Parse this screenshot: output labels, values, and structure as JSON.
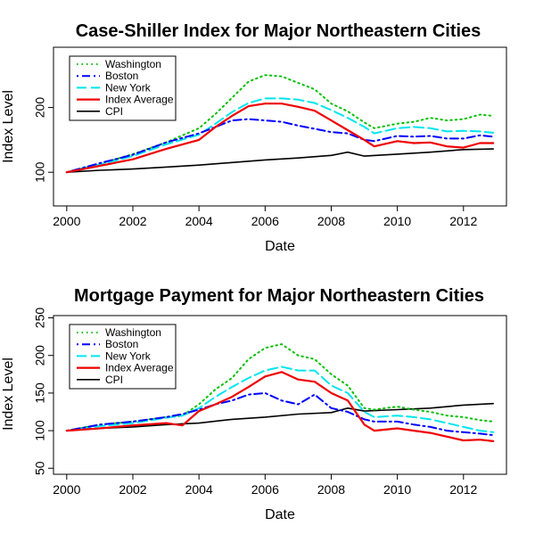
{
  "chart_data": [
    {
      "type": "line",
      "title": "Case-Shiller Index for Major Northeastern Cities",
      "xlabel": "Date",
      "ylabel": "Index Level",
      "xlim": [
        1999.6,
        2013.3
      ],
      "ylim": [
        48,
        293
      ],
      "x_ticks": [
        2000,
        2002,
        2004,
        2006,
        2008,
        2010,
        2012
      ],
      "y_ticks": [
        100,
        200
      ],
      "legend_position": "top-left",
      "series": [
        {
          "name": "Washington",
          "color": "#00c000",
          "style": "dotted",
          "x": [
            2000,
            2001,
            2002,
            2003,
            2004,
            2004.5,
            2005,
            2005.5,
            2006,
            2006.5,
            2007,
            2007.5,
            2008,
            2008.5,
            2009,
            2009.3,
            2010,
            2010.5,
            2011,
            2011.5,
            2012,
            2012.5,
            2012.9
          ],
          "y": [
            100,
            113,
            128,
            146,
            168,
            190,
            215,
            240,
            250,
            248,
            238,
            228,
            206,
            194,
            177,
            168,
            175,
            178,
            184,
            180,
            182,
            189,
            187
          ]
        },
        {
          "name": "Boston",
          "color": "#0000ff",
          "style": "dotdash",
          "x": [
            2000,
            2001,
            2002,
            2003,
            2004,
            2004.5,
            2005,
            2005.5,
            2006,
            2006.5,
            2007,
            2007.5,
            2008,
            2008.5,
            2009,
            2009.3,
            2010,
            2010.5,
            2011,
            2011.5,
            2012,
            2012.5,
            2012.9
          ],
          "y": [
            100,
            114,
            127,
            146,
            160,
            170,
            180,
            182,
            180,
            178,
            172,
            167,
            162,
            160,
            150,
            148,
            156,
            155,
            156,
            152,
            152,
            157,
            155
          ]
        },
        {
          "name": "New York",
          "color": "#00e5ee",
          "style": "longdash",
          "x": [
            2000,
            2001,
            2002,
            2003,
            2004,
            2004.5,
            2005,
            2005.5,
            2006,
            2006.5,
            2007,
            2007.5,
            2008,
            2008.5,
            2009,
            2009.3,
            2010,
            2010.5,
            2011,
            2011.5,
            2012,
            2012.5,
            2012.9
          ],
          "y": [
            100,
            112,
            125,
            143,
            158,
            175,
            193,
            207,
            214,
            214,
            212,
            207,
            196,
            184,
            170,
            160,
            168,
            170,
            168,
            163,
            164,
            163,
            161
          ]
        },
        {
          "name": "Index Average",
          "color": "#ee0000",
          "style": "solid-thick",
          "x": [
            2000,
            2001,
            2002,
            2003,
            2004,
            2004.5,
            2005,
            2005.5,
            2006,
            2006.5,
            2007,
            2007.5,
            2008,
            2008.5,
            2009,
            2009.3,
            2010,
            2010.5,
            2011,
            2011.5,
            2012,
            2012.5,
            2012.9
          ],
          "y": [
            100,
            110,
            120,
            136,
            150,
            170,
            187,
            202,
            206,
            206,
            201,
            195,
            180,
            165,
            150,
            140,
            148,
            145,
            146,
            140,
            138,
            145,
            145
          ]
        },
        {
          "name": "CPI",
          "color": "#000000",
          "style": "solid",
          "x": [
            2000,
            2001,
            2002,
            2003,
            2004,
            2005,
            2006,
            2007,
            2008,
            2008.5,
            2009,
            2010,
            2011,
            2012,
            2012.9
          ],
          "y": [
            100,
            103,
            105,
            108,
            111,
            115,
            119,
            122,
            126,
            131,
            125,
            128,
            131,
            135,
            136
          ]
        }
      ]
    },
    {
      "type": "line",
      "title": "Mortgage Payment for Major Northeastern Cities",
      "xlabel": "Date",
      "ylabel": "Index Level",
      "xlim": [
        1999.6,
        2013.3
      ],
      "ylim": [
        42,
        253
      ],
      "x_ticks": [
        2000,
        2002,
        2004,
        2006,
        2008,
        2010,
        2012
      ],
      "y_ticks": [
        50,
        100,
        150,
        200,
        250
      ],
      "legend_position": "top-left",
      "series": [
        {
          "name": "Washington",
          "color": "#00c000",
          "style": "dotted",
          "x": [
            2000,
            2001,
            2002,
            2003,
            2003.5,
            2004,
            2004.5,
            2005,
            2005.5,
            2006,
            2006.5,
            2007,
            2007.5,
            2008,
            2008.5,
            2009,
            2009.3,
            2010,
            2010.5,
            2011,
            2011.5,
            2012,
            2012.5,
            2012.9
          ],
          "y": [
            100,
            108,
            112,
            118,
            120,
            135,
            155,
            170,
            195,
            210,
            215,
            200,
            195,
            175,
            160,
            130,
            128,
            132,
            128,
            125,
            120,
            118,
            114,
            112
          ]
        },
        {
          "name": "Boston",
          "color": "#0000ff",
          "style": "dotdash",
          "x": [
            2000,
            2001,
            2002,
            2003,
            2003.5,
            2004,
            2004.5,
            2005,
            2005.5,
            2006,
            2006.5,
            2007,
            2007.5,
            2008,
            2008.5,
            2009,
            2009.3,
            2010,
            2010.5,
            2011,
            2011.5,
            2012,
            2012.5,
            2012.9
          ],
          "y": [
            100,
            108,
            112,
            118,
            122,
            128,
            135,
            140,
            148,
            150,
            140,
            135,
            148,
            130,
            125,
            115,
            112,
            112,
            108,
            105,
            100,
            98,
            96,
            94
          ]
        },
        {
          "name": "New York",
          "color": "#00e5ee",
          "style": "longdash",
          "x": [
            2000,
            2001,
            2002,
            2003,
            2003.5,
            2004,
            2004.5,
            2005,
            2005.5,
            2006,
            2006.5,
            2007,
            2007.5,
            2008,
            2008.5,
            2009,
            2009.3,
            2010,
            2010.5,
            2011,
            2011.5,
            2012,
            2012.5,
            2012.9
          ],
          "y": [
            100,
            106,
            110,
            117,
            120,
            130,
            145,
            158,
            170,
            180,
            185,
            180,
            180,
            160,
            150,
            125,
            118,
            120,
            118,
            115,
            110,
            105,
            100,
            98
          ]
        },
        {
          "name": "Index Average",
          "color": "#ee0000",
          "style": "solid-thick",
          "x": [
            2000,
            2001,
            2002,
            2003,
            2003.5,
            2004,
            2004.5,
            2005,
            2005.5,
            2006,
            2006.5,
            2007,
            2007.5,
            2008,
            2008.5,
            2009,
            2009.3,
            2010,
            2010.5,
            2011,
            2011.5,
            2012,
            2012.5,
            2012.9
          ],
          "y": [
            100,
            103,
            107,
            110,
            107,
            126,
            135,
            145,
            158,
            172,
            178,
            168,
            165,
            150,
            140,
            108,
            100,
            103,
            100,
            97,
            92,
            87,
            88,
            86
          ]
        },
        {
          "name": "CPI",
          "color": "#000000",
          "style": "solid",
          "x": [
            2000,
            2001,
            2002,
            2003,
            2004,
            2005,
            2006,
            2007,
            2008,
            2008.5,
            2009,
            2010,
            2011,
            2012,
            2012.9
          ],
          "y": [
            100,
            103,
            105,
            108,
            110,
            115,
            118,
            122,
            124,
            130,
            126,
            128,
            130,
            134,
            136
          ]
        }
      ]
    }
  ]
}
